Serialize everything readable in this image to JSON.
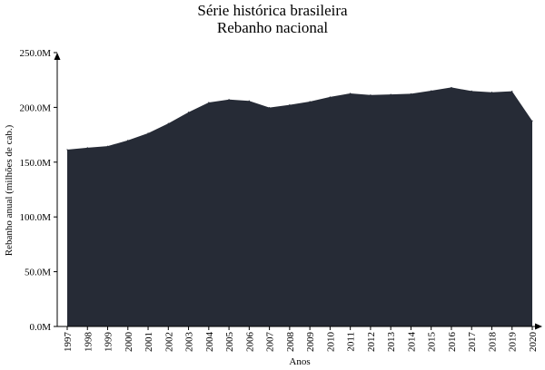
{
  "chart_data": {
    "type": "area",
    "title": "Série histórica brasileira",
    "subtitle": "Rebanho nacional",
    "xlabel": "Anos",
    "ylabel": "Rebanho anual (milhões de cab.)",
    "ylim": [
      0,
      250000000
    ],
    "y_ticks": [
      0,
      50000000,
      100000000,
      150000000,
      200000000,
      250000000
    ],
    "y_tick_labels": [
      "0.0M",
      "50.0M",
      "100.0M",
      "150.0M",
      "200.0M",
      "250.0M"
    ],
    "grid": false,
    "legend": "none",
    "colors": {
      "area": "#262b36",
      "axis": "#000000"
    },
    "x": [
      "1997",
      "1998",
      "1999",
      "2000",
      "2001",
      "2002",
      "2003",
      "2004",
      "2005",
      "2006",
      "2007",
      "2008",
      "2009",
      "2010",
      "2011",
      "2012",
      "2013",
      "2014",
      "2015",
      "2016",
      "2017",
      "2018",
      "2019",
      "2020"
    ],
    "series": [
      {
        "values": [
          161400000,
          163200000,
          164600000,
          169900000,
          176400000,
          185300000,
          195600000,
          204500000,
          207200000,
          205900000,
          199800000,
          202300000,
          205300000,
          209500000,
          212800000,
          211300000,
          211800000,
          212400000,
          215200000,
          218200000,
          214900000,
          213800000,
          214700000,
          187600000
        ]
      }
    ]
  }
}
